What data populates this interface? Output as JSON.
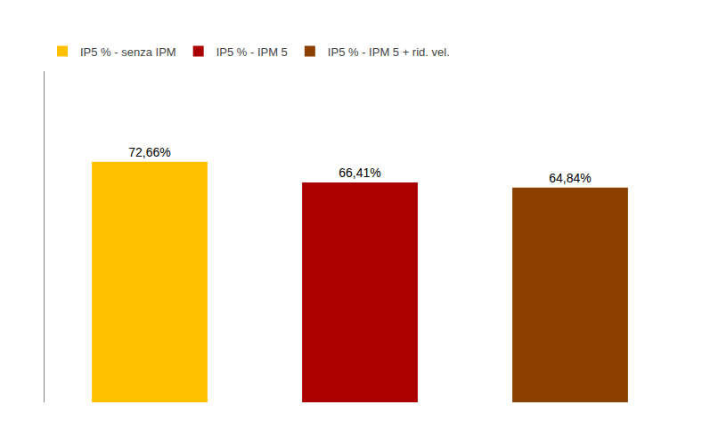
{
  "chart_data": {
    "type": "bar",
    "categories": [
      null,
      null,
      null
    ],
    "series": [
      {
        "name": "IP5 % - senza IPM",
        "color": "#FFC000",
        "values": [
          72.66,
          null,
          null
        ],
        "value_labels": [
          "72,66%",
          null,
          null
        ]
      },
      {
        "name": "IP5 % - IPM 5",
        "color": "#AA0000",
        "values": [
          null,
          66.41,
          null
        ],
        "value_labels": [
          null,
          "66,41%",
          null
        ]
      },
      {
        "name": "IP5 % - IPM 5 + rid. vel.",
        "color": "#8B4000",
        "values": [
          null,
          null,
          64.84
        ],
        "value_labels": [
          null,
          null,
          "64,84%"
        ]
      }
    ],
    "ylim": [
      0,
      100
    ],
    "data_labels": true,
    "tick_labels": false,
    "grid": false,
    "legend": "upper left"
  }
}
